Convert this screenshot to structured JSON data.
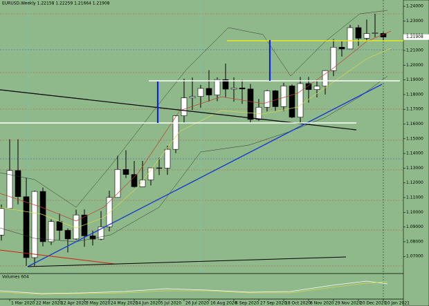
{
  "chart_data": {
    "type": "candlestick",
    "title": "EURUSD,Weekly  1.22158 1.22259 1.21664 1.21908",
    "indicator_title": "Volumes  604",
    "last_price": {
      "value": 1.21908,
      "label": "1.21908"
    },
    "categories": [
      null,
      "1 Mar 2020",
      null,
      null,
      "22 Mar 2020",
      null,
      null,
      "12 Apr 2020",
      null,
      null,
      "3 May 2020",
      null,
      null,
      "24 May 2020",
      null,
      null,
      "14 Jun 2020",
      null,
      null,
      "5 Jul 2020",
      null,
      null,
      "26 Jul 2020",
      null,
      null,
      "16 Aug 2020",
      null,
      null,
      "6 Sep 2020",
      null,
      null,
      "27 Sep 2020",
      null,
      null,
      "18 Oct 2020",
      null,
      null,
      "8 Nov 2020",
      null,
      null,
      "29 Nov 2020",
      null,
      null,
      "20 Dec 2020",
      null,
      null,
      "10 Jan 2021"
    ],
    "open": [
      1.0845,
      1.1026,
      1.1284,
      1.1106,
      1.0692,
      1.1142,
      1.08,
      1.0937,
      1.0877,
      1.0819,
      1.0982,
      1.084,
      1.0818,
      1.0901,
      1.1101,
      1.1291,
      1.1257,
      1.1174,
      1.122,
      1.1302,
      1.13,
      1.1428,
      1.1656,
      1.1778,
      1.1787,
      1.1842,
      1.1797,
      1.1902,
      1.1837,
      1.1845,
      1.1838,
      1.1631,
      1.1714,
      1.1826,
      1.1718,
      1.1859,
      1.1646,
      1.1875,
      1.1834,
      1.1857,
      1.1963,
      1.2122,
      1.211,
      1.2255,
      1.2183,
      1.2215,
      1.22158
    ],
    "high": [
      1.1053,
      1.1496,
      1.1496,
      1.1236,
      1.1147,
      1.1168,
      1.0952,
      1.0991,
      1.089,
      1.1018,
      1.1019,
      1.0875,
      1.1008,
      1.1147,
      1.1384,
      1.1422,
      1.1349,
      1.1349,
      1.1303,
      1.1371,
      1.1452,
      1.1659,
      1.1908,
      1.1916,
      1.1866,
      1.1966,
      1.1917,
      1.2011,
      1.1917,
      1.19,
      1.1872,
      1.177,
      1.1832,
      1.1831,
      1.188,
      1.1869,
      1.192,
      1.192,
      1.1894,
      1.1966,
      1.2177,
      1.2163,
      1.2273,
      1.2273,
      1.231,
      1.2349,
      1.22259
    ],
    "low": [
      1.0808,
      1.1036,
      1.1054,
      1.0636,
      1.0637,
      1.0768,
      1.0778,
      1.0811,
      1.0727,
      1.0812,
      1.0766,
      1.0775,
      1.081,
      1.087,
      1.1099,
      1.1233,
      1.1168,
      1.1188,
      1.1183,
      1.1253,
      1.1255,
      1.1402,
      1.161,
      1.1696,
      1.171,
      1.1753,
      1.1755,
      1.1781,
      1.1752,
      1.1737,
      1.1612,
      1.1621,
      1.1686,
      1.1689,
      1.1688,
      1.164,
      1.1603,
      1.1745,
      1.1781,
      1.18,
      1.1925,
      1.2058,
      1.211,
      1.213,
      1.217,
      1.219,
      1.21664
    ],
    "close": [
      1.1026,
      1.1284,
      1.1106,
      1.0692,
      1.1142,
      1.08,
      1.0937,
      1.0877,
      1.0819,
      1.0982,
      1.084,
      1.0818,
      1.0901,
      1.1101,
      1.1291,
      1.1257,
      1.1174,
      1.122,
      1.1302,
      1.13,
      1.1428,
      1.1656,
      1.1778,
      1.1787,
      1.1842,
      1.1797,
      1.1902,
      1.1837,
      1.1845,
      1.1838,
      1.1631,
      1.1714,
      1.1826,
      1.1718,
      1.1859,
      1.1646,
      1.1875,
      1.1834,
      1.1857,
      1.1963,
      1.2122,
      1.211,
      1.2255,
      1.2183,
      1.2215,
      1.222,
      1.21908
    ],
    "up_color": "#ffffff",
    "down_color": "#000000",
    "ylim": [
      1.05838,
      1.24428
    ],
    "yticks": [
      {
        "value": 1.07,
        "label": "1.07000"
      },
      {
        "value": 1.08,
        "label": "1.08000"
      },
      {
        "value": 1.09,
        "label": "1.09000"
      },
      {
        "value": 1.1,
        "label": "1.10000"
      },
      {
        "value": 1.11,
        "label": "1.11000"
      },
      {
        "value": 1.12,
        "label": "1.12000"
      },
      {
        "value": 1.13,
        "label": "1.13000"
      },
      {
        "value": 1.14,
        "label": "1.14000"
      },
      {
        "value": 1.15,
        "label": "1.15000"
      },
      {
        "value": 1.16,
        "label": "1.16000"
      },
      {
        "value": 1.17,
        "label": "1.17000"
      },
      {
        "value": 1.18,
        "label": "1.18000"
      },
      {
        "value": 1.19,
        "label": "1.19000"
      },
      {
        "value": 1.2,
        "label": "1.20000"
      },
      {
        "value": 1.21,
        "label": "1.21000"
      },
      {
        "value": 1.22,
        "label": "1.22000"
      },
      {
        "value": 1.23,
        "label": "1.23000"
      },
      {
        "value": 1.24,
        "label": "1.24000"
      }
    ]
  }
}
